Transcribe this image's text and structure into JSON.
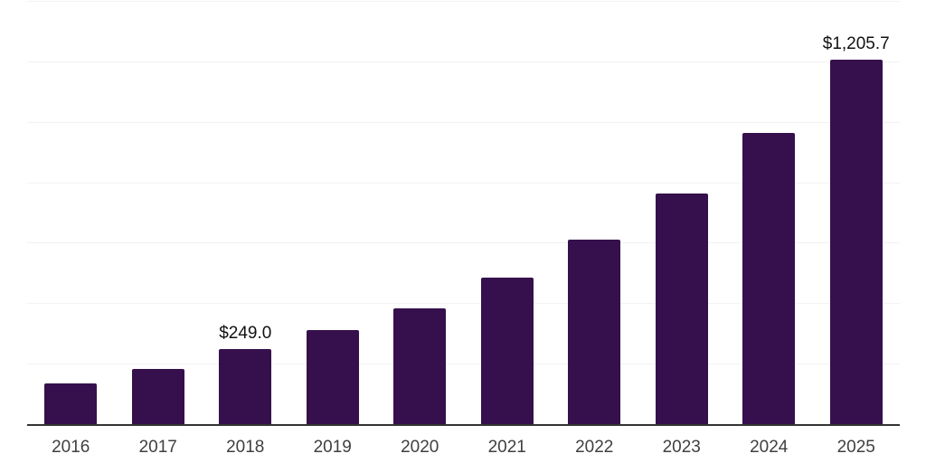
{
  "chart": {
    "background": "#ffffff",
    "bar_color": "#36104D",
    "gridline_color": "#f2f2f2",
    "axis_color": "#333333",
    "data_label_color": "#111111",
    "tick_label_color": "#404040"
  },
  "chart_data": {
    "type": "bar",
    "title": "",
    "xlabel": "",
    "ylabel": "",
    "categories": [
      "2016",
      "2017",
      "2018",
      "2019",
      "2020",
      "2021",
      "2022",
      "2023",
      "2024",
      "2025"
    ],
    "values": [
      136,
      184,
      249.0,
      310,
      384,
      486,
      609,
      764,
      962,
      1205.7
    ],
    "data_labels": [
      "",
      "",
      "$249.0",
      "",
      "",
      "",
      "",
      "",
      "",
      "$1,205.7"
    ],
    "ylim": [
      0,
      1400
    ],
    "grid_step": 200,
    "grid": "horizontal",
    "y_tick_labels": "none",
    "legend": "none"
  }
}
